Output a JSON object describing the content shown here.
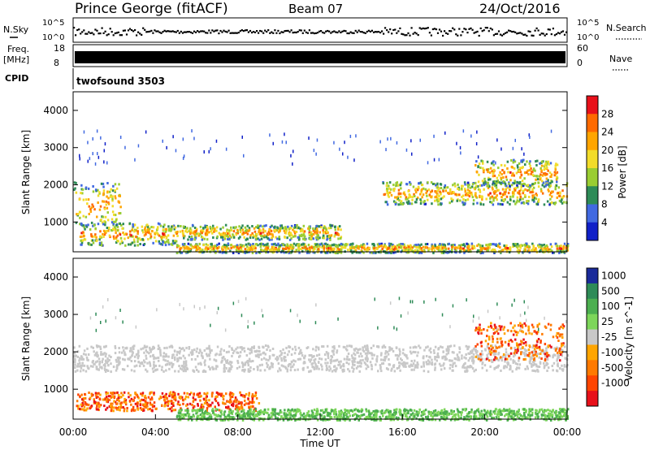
{
  "header": {
    "station": "Prince George (fitACF)",
    "beam": "Beam 07",
    "date": "24/Oct/2016"
  },
  "top_panels": {
    "nsky_label": "N.Sky",
    "nsky_ticks": [
      "10^5",
      "10^0"
    ],
    "nsearch_label": "N.Search",
    "nsearch_ticks": [
      "10^5",
      "10^0"
    ],
    "freq_label_1": "Freq.",
    "freq_label_2": "[MHz]",
    "freq_ticks": [
      "18",
      "8"
    ],
    "nave_label": "Nave",
    "nave_ticks": [
      "60",
      "0"
    ],
    "cpid_label": "CPID",
    "cpid_value": "twofsound 3503"
  },
  "chart_data": [
    {
      "type": "heatmap",
      "name": "power-panel",
      "ylabel": "Slant Range [km]",
      "y_ticks": [
        "1000",
        "2000",
        "3000",
        "4000"
      ],
      "ylim": [
        200,
        4500
      ],
      "colorbar_label": "Power [dB]",
      "colorbar_ticks": [
        "28",
        "24",
        "20",
        "16",
        "12",
        "8",
        "4"
      ],
      "colorbar_colors": [
        "#e8101a",
        "#ff6a00",
        "#ffa500",
        "#f2dc2a",
        "#9acd32",
        "#2e8b57",
        "#4169e1",
        "#1020c8"
      ],
      "echo_bands": [
        {
          "t0": 0.0,
          "t1": 2.3,
          "r0": 900,
          "r1": 2100
        },
        {
          "t0": 0.3,
          "t1": 5.0,
          "r0": 400,
          "r1": 1000
        },
        {
          "t0": 5.0,
          "t1": 13.0,
          "r0": 550,
          "r1": 950
        },
        {
          "t0": 5.0,
          "t1": 24.0,
          "r0": 200,
          "r1": 450
        },
        {
          "t0": 15.0,
          "t1": 24.0,
          "r0": 1500,
          "r1": 2100
        },
        {
          "t0": 19.5,
          "t1": 23.5,
          "r0": 2000,
          "r1": 2700
        }
      ]
    },
    {
      "type": "heatmap",
      "name": "velocity-panel",
      "ylabel": "Slant Range [km]",
      "y_ticks": [
        "1000",
        "2000",
        "3000",
        "4000"
      ],
      "ylim": [
        200,
        4500
      ],
      "colorbar_label": "Velocity [m s^-1]",
      "colorbar_ticks": [
        "1000",
        "500",
        "100",
        "25",
        "-25",
        "-100",
        "-500",
        "-1000"
      ],
      "colorbar_colors": [
        "#1a2a9a",
        "#2e8b57",
        "#4caf50",
        "#7dd65a",
        "#c8c8c8",
        "#ffa500",
        "#ff7a00",
        "#ff4500",
        "#e8101a"
      ],
      "echo_bands": [
        {
          "t0": 0.0,
          "t1": 24.0,
          "r0": 1500,
          "r1": 2200,
          "class": "ground"
        },
        {
          "t0": 0.0,
          "t1": 9.0,
          "r0": 450,
          "r1": 950,
          "class": "negative"
        },
        {
          "t0": 5.0,
          "t1": 24.0,
          "r0": 200,
          "r1": 500,
          "class": "positive"
        },
        {
          "t0": 19.5,
          "t1": 23.8,
          "r0": 1800,
          "r1": 2800,
          "class": "negative"
        }
      ]
    }
  ],
  "x_axis": {
    "ticks": [
      "00:00",
      "04:00",
      "08:00",
      "12:00",
      "16:00",
      "20:00",
      "00:00"
    ],
    "label": "Time UT",
    "xlim_hours": [
      0,
      24
    ]
  }
}
